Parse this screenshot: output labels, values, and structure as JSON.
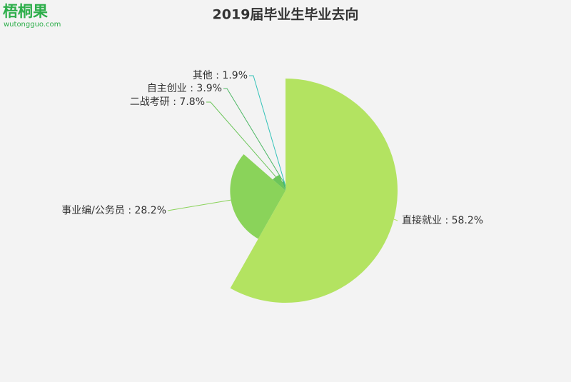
{
  "logo": {
    "name": "梧桐果",
    "site": "wutongguo.com"
  },
  "chart_data": {
    "type": "rose",
    "title": "2019届毕业生毕业去向",
    "labels": [
      "直接就业 : 58.2%",
      "事业编/公务员 : 28.2%",
      "二战考研 : 7.8%",
      "自主创业 : 3.9%",
      "其他 : 1.9%"
    ],
    "values": [
      58.2,
      28.2,
      7.8,
      3.9,
      1.9
    ],
    "colors": [
      "#b3e361",
      "#8ad35a",
      "#6cc55a",
      "#4fb866",
      "#33b59a"
    ],
    "line_colors": [
      "#b3e361",
      "#8ad35a",
      "#6cc55a",
      "#4fb866",
      "#33c2b8"
    ]
  }
}
